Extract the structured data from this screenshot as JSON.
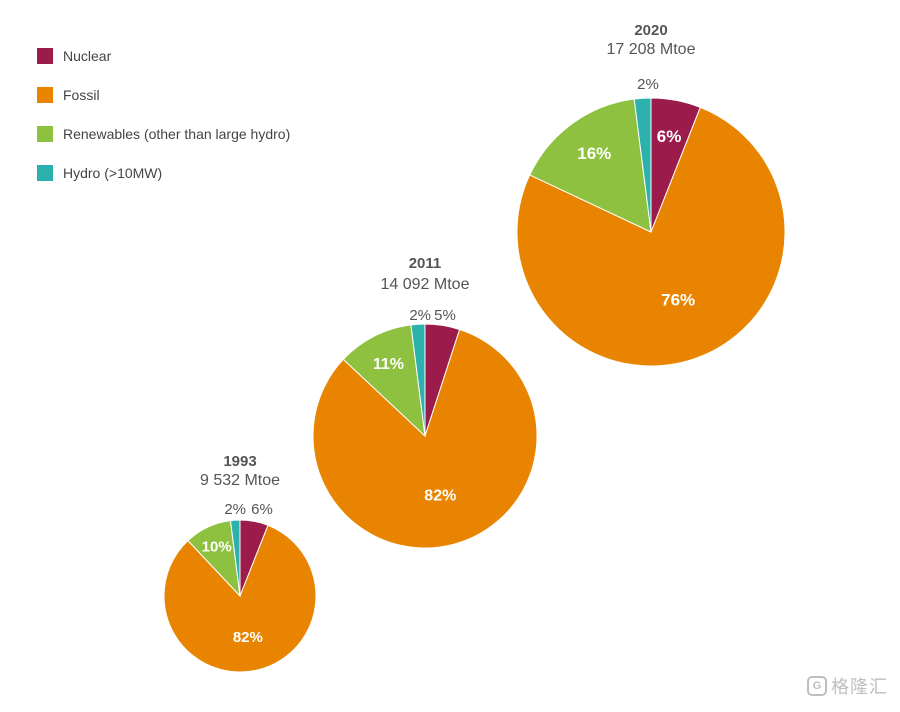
{
  "chart_data": {
    "type": "pie",
    "legend": {
      "placement": "top-left",
      "entries": [
        {
          "key": "nuclear",
          "label": "Nuclear",
          "color": "#9b1c4a"
        },
        {
          "key": "fossil",
          "label": "Fossil",
          "color": "#e88400"
        },
        {
          "key": "renewables",
          "label": "Renewables (other than large hydro)",
          "color": "#8dc13f"
        },
        {
          "key": "hydro",
          "label": "Hydro (>10MW)",
          "color": "#2cb1ad"
        }
      ]
    },
    "pies": [
      {
        "year": "1993",
        "total": "9 532 Mtoe",
        "slices": [
          {
            "key": "nuclear",
            "value": 6,
            "label": "6%"
          },
          {
            "key": "fossil",
            "value": 82,
            "label": "82%"
          },
          {
            "key": "renewables",
            "value": 10,
            "label": "10%"
          },
          {
            "key": "hydro",
            "value": 2,
            "label": "2%"
          }
        ]
      },
      {
        "year": "2011",
        "total": "14 092 Mtoe",
        "slices": [
          {
            "key": "nuclear",
            "value": 5,
            "label": "5%"
          },
          {
            "key": "fossil",
            "value": 82,
            "label": "82%"
          },
          {
            "key": "renewables",
            "value": 11,
            "label": "11%"
          },
          {
            "key": "hydro",
            "value": 2,
            "label": "2%"
          }
        ]
      },
      {
        "year": "2020",
        "total": "17 208 Mtoe",
        "slices": [
          {
            "key": "nuclear",
            "value": 6,
            "label": "6%"
          },
          {
            "key": "fossil",
            "value": 76,
            "label": "76%"
          },
          {
            "key": "renewables",
            "value": 16,
            "label": "16%"
          },
          {
            "key": "hydro",
            "value": 2,
            "label": "2%"
          }
        ]
      }
    ]
  },
  "watermark": {
    "icon_glyph": "G",
    "text": "格隆汇"
  }
}
